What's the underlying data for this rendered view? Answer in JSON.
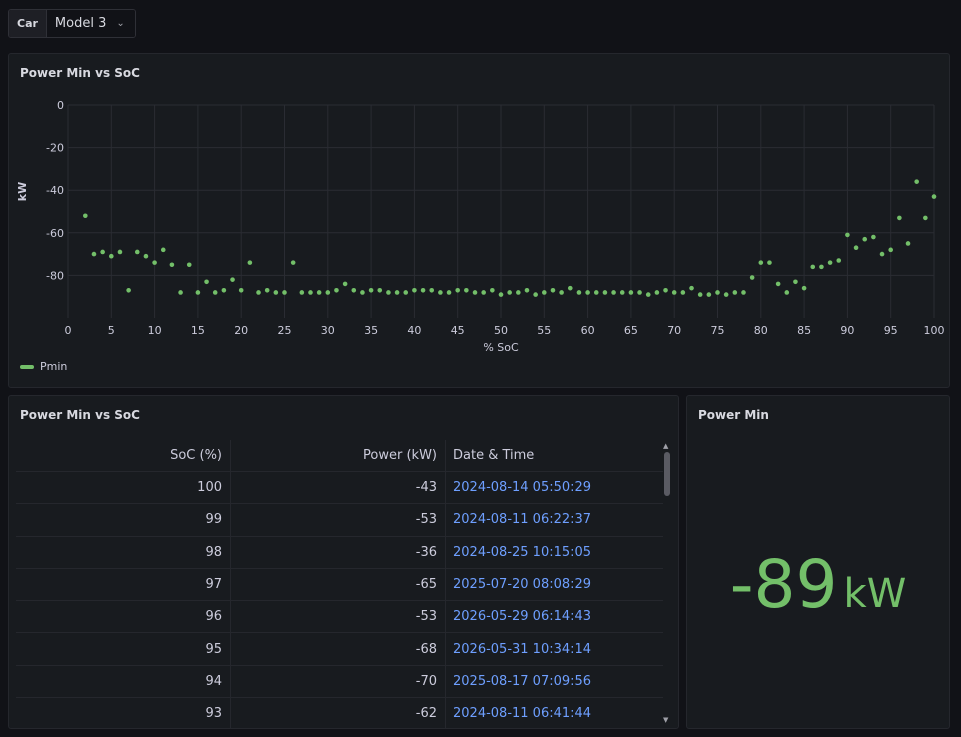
{
  "variable_bar": {
    "label": "Car",
    "selected": "Model 3"
  },
  "chart_panel": {
    "title": "Power Min vs SoC",
    "legend": "Pmin"
  },
  "chart_data": {
    "type": "scatter",
    "xlabel": "% SoC",
    "ylabel": "kW",
    "xlim": [
      0,
      100
    ],
    "ylim": [
      -100,
      0
    ],
    "xticks": [
      0,
      5,
      10,
      15,
      20,
      25,
      30,
      35,
      40,
      45,
      50,
      55,
      60,
      65,
      70,
      75,
      80,
      85,
      90,
      95,
      100
    ],
    "yticks": [
      0,
      -20,
      -40,
      -60,
      -80
    ],
    "grid": true,
    "legend_position": "bottom-left",
    "series_color": "#73bf69",
    "series": [
      {
        "name": "Pmin",
        "points": [
          [
            2,
            -52
          ],
          [
            3,
            -70
          ],
          [
            4,
            -69
          ],
          [
            5,
            -71
          ],
          [
            6,
            -69
          ],
          [
            7,
            -87
          ],
          [
            8,
            -69
          ],
          [
            9,
            -71
          ],
          [
            10,
            -74
          ],
          [
            11,
            -68
          ],
          [
            12,
            -75
          ],
          [
            13,
            -88
          ],
          [
            14,
            -75
          ],
          [
            15,
            -88
          ],
          [
            16,
            -83
          ],
          [
            17,
            -88
          ],
          [
            18,
            -87
          ],
          [
            19,
            -82
          ],
          [
            20,
            -87
          ],
          [
            21,
            -74
          ],
          [
            22,
            -88
          ],
          [
            23,
            -87
          ],
          [
            24,
            -88
          ],
          [
            25,
            -88
          ],
          [
            26,
            -74
          ],
          [
            27,
            -88
          ],
          [
            28,
            -88
          ],
          [
            29,
            -88
          ],
          [
            30,
            -88
          ],
          [
            31,
            -87
          ],
          [
            32,
            -84
          ],
          [
            33,
            -87
          ],
          [
            34,
            -88
          ],
          [
            35,
            -87
          ],
          [
            36,
            -87
          ],
          [
            37,
            -88
          ],
          [
            38,
            -88
          ],
          [
            39,
            -88
          ],
          [
            40,
            -87
          ],
          [
            41,
            -87
          ],
          [
            42,
            -87
          ],
          [
            43,
            -88
          ],
          [
            44,
            -88
          ],
          [
            45,
            -87
          ],
          [
            46,
            -87
          ],
          [
            47,
            -88
          ],
          [
            48,
            -88
          ],
          [
            49,
            -87
          ],
          [
            50,
            -89
          ],
          [
            51,
            -88
          ],
          [
            52,
            -88
          ],
          [
            53,
            -87
          ],
          [
            54,
            -89
          ],
          [
            55,
            -88
          ],
          [
            56,
            -87
          ],
          [
            57,
            -88
          ],
          [
            58,
            -86
          ],
          [
            59,
            -88
          ],
          [
            60,
            -88
          ],
          [
            61,
            -88
          ],
          [
            62,
            -88
          ],
          [
            63,
            -88
          ],
          [
            64,
            -88
          ],
          [
            65,
            -88
          ],
          [
            66,
            -88
          ],
          [
            67,
            -89
          ],
          [
            68,
            -88
          ],
          [
            69,
            -87
          ],
          [
            70,
            -88
          ],
          [
            71,
            -88
          ],
          [
            72,
            -86
          ],
          [
            73,
            -89
          ],
          [
            74,
            -89
          ],
          [
            75,
            -88
          ],
          [
            76,
            -89
          ],
          [
            77,
            -88
          ],
          [
            78,
            -88
          ],
          [
            79,
            -81
          ],
          [
            80,
            -74
          ],
          [
            81,
            -74
          ],
          [
            82,
            -84
          ],
          [
            83,
            -88
          ],
          [
            84,
            -83
          ],
          [
            85,
            -86
          ],
          [
            86,
            -76
          ],
          [
            87,
            -76
          ],
          [
            88,
            -74
          ],
          [
            89,
            -73
          ],
          [
            90,
            -61
          ],
          [
            91,
            -67
          ],
          [
            92,
            -63
          ],
          [
            93,
            -62
          ],
          [
            94,
            -70
          ],
          [
            95,
            -68
          ],
          [
            96,
            -53
          ],
          [
            97,
            -65
          ],
          [
            98,
            -36
          ],
          [
            99,
            -53
          ],
          [
            100,
            -43
          ]
        ]
      }
    ]
  },
  "table_panel": {
    "title": "Power Min vs SoC",
    "headers": [
      "SoC (%)",
      "Power (kW)",
      "Date & Time"
    ],
    "rows": [
      [
        "100",
        "-43",
        "2024-08-14 05:50:29"
      ],
      [
        "99",
        "-53",
        "2024-08-11 06:22:37"
      ],
      [
        "98",
        "-36",
        "2024-08-25 10:15:05"
      ],
      [
        "97",
        "-65",
        "2025-07-20 08:08:29"
      ],
      [
        "96",
        "-53",
        "2026-05-29 06:14:43"
      ],
      [
        "95",
        "-68",
        "2026-05-31 10:34:14"
      ],
      [
        "94",
        "-70",
        "2025-08-17 07:09:56"
      ],
      [
        "93",
        "-62",
        "2024-08-11 06:41:44"
      ]
    ]
  },
  "stat_panel": {
    "title": "Power Min",
    "value": "-89",
    "unit": "kW",
    "color": "#73bf69"
  }
}
